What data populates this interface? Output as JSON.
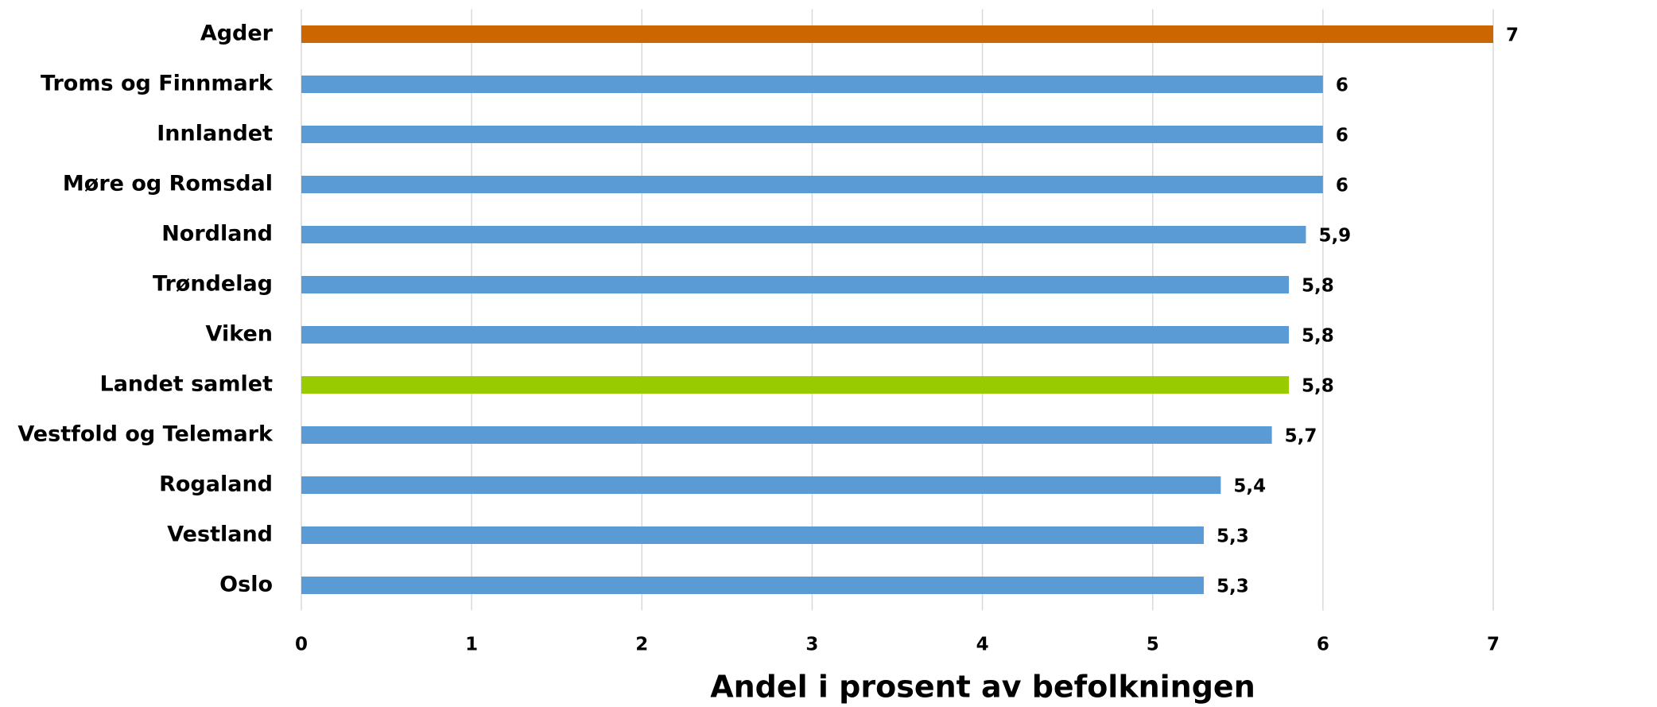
{
  "chart_data": {
    "type": "bar",
    "orientation": "horizontal",
    "x_label": "Andel i prosent av befolkningen",
    "categories": [
      "Agder",
      "Troms og Finnmark",
      "Innlandet",
      "Møre og Romsdal",
      "Nordland",
      "Trøndelag",
      "Viken",
      "Landet samlet",
      "Vestfold og Telemark",
      "Rogaland",
      "Vestland",
      "Oslo"
    ],
    "values": [
      7,
      6,
      6,
      6,
      5.9,
      5.8,
      5.8,
      5.8,
      5.7,
      5.4,
      5.3,
      5.3
    ],
    "value_labels": [
      "7",
      "6",
      "6",
      "6",
      "5,9",
      "5,8",
      "5,8",
      "5,8",
      "5,7",
      "5,4",
      "5,3",
      "5,3"
    ],
    "colors": [
      "#cc6600",
      "#5b9bd5",
      "#5b9bd5",
      "#5b9bd5",
      "#5b9bd5",
      "#5b9bd5",
      "#5b9bd5",
      "#99cc00",
      "#5b9bd5",
      "#5b9bd5",
      "#5b9bd5",
      "#5b9bd5"
    ],
    "xlim": [
      0,
      7
    ],
    "xticks": [
      0,
      1,
      2,
      3,
      4,
      5,
      6,
      7
    ],
    "grid": true
  }
}
